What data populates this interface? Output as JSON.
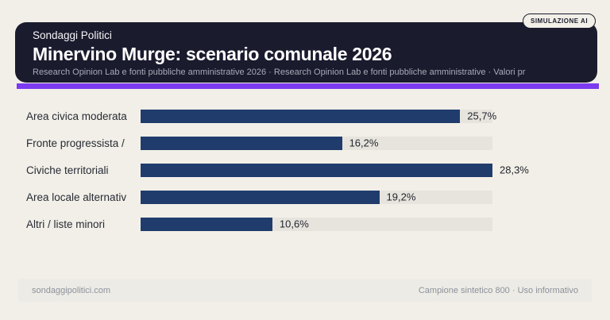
{
  "badge": {
    "label": "SIMULAZIONE AI"
  },
  "header": {
    "kicker": "Sondaggi Politici",
    "title": "Minervino Murge: scenario comunale 2026",
    "subtitle": "Research Opinion Lab e fonti pubbliche amministrative 2026 · Research Opinion Lab e fonti pubbliche amministrative · Valori pr"
  },
  "chart_data": {
    "type": "bar",
    "orientation": "horizontal",
    "title": "Minervino Murge: scenario comunale 2026",
    "categories": [
      "Area civica moderata",
      "Fronte progressista /",
      "Civiche territoriali",
      "Area locale alternativ",
      "Altri / liste minori"
    ],
    "values": [
      25.7,
      16.2,
      28.3,
      19.2,
      10.6
    ],
    "value_labels": [
      "25,7%",
      "16,2%",
      "28,3%",
      "19,2%",
      "10,6%"
    ],
    "xlim": [
      0,
      28.3
    ],
    "grid": false,
    "legend": false,
    "bar_color": "#1f3c6d",
    "track_color": "#e7e4de"
  },
  "footer": {
    "left": "sondaggipolitici.com",
    "right": "Campione sintetico 800 · Uso informativo"
  },
  "colors": {
    "page_background": "#f2efe8",
    "header_background": "#1a1b2d",
    "accent": "#7c3bf0",
    "bar": "#1f3c6d",
    "track": "#e7e4de",
    "footer_background": "#ecebe5"
  }
}
